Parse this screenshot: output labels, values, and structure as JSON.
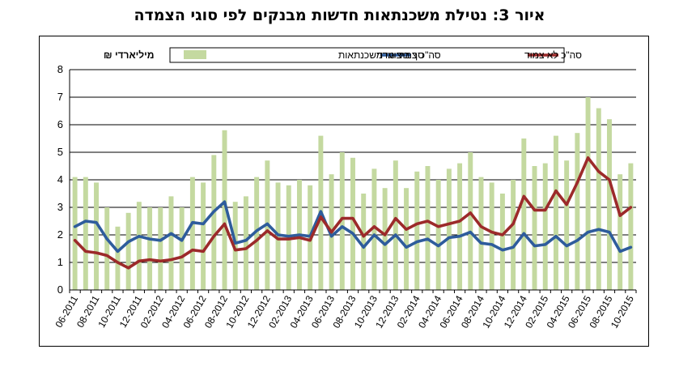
{
  "title": "איור 3: נטילת משכנתאות חדשות מבנקים לפי סוגי הצמדה",
  "chart_data": {
    "type": "bar",
    "unit_label": "מיליארדי ₪",
    "ylim": [
      0,
      8
    ],
    "yticks": [
      0,
      1,
      2,
      3,
      4,
      5,
      6,
      7,
      8
    ],
    "grid": true,
    "legend_placement": "top",
    "x": [
      "06-2011",
      "07-2011",
      "08-2011",
      "09-2011",
      "10-2011",
      "11-2011",
      "12-2011",
      "01-2012",
      "02-2012",
      "03-2012",
      "04-2012",
      "05-2012",
      "06-2012",
      "07-2012",
      "08-2012",
      "09-2012",
      "10-2012",
      "11-2012",
      "12-2012",
      "01-2013",
      "02-2013",
      "03-2013",
      "04-2013",
      "05-2013",
      "06-2013",
      "07-2013",
      "08-2013",
      "09-2013",
      "10-2013",
      "11-2013",
      "12-2013",
      "01-2014",
      "02-2014",
      "03-2014",
      "04-2014",
      "05-2014",
      "06-2014",
      "07-2014",
      "08-2014",
      "09-2014",
      "10-2014",
      "11-2014",
      "12-2014",
      "01-2015",
      "02-2015",
      "03-2015",
      "04-2015",
      "05-2015",
      "06-2015",
      "07-2015",
      "08-2015",
      "09-2015",
      "10-2015"
    ],
    "xtick_labels": [
      "06-2011",
      "08-2011",
      "10-2011",
      "12-2011",
      "02-2012",
      "04-2012",
      "06-2012",
      "08-2012",
      "10-2012",
      "12-2012",
      "02-2013",
      "04-2013",
      "06-2013",
      "08-2013",
      "10-2013",
      "12-2013",
      "02-2014",
      "04-2014",
      "06-2014",
      "08-2014",
      "10-2014",
      "12-2014",
      "02-2015",
      "04-2015",
      "06-2015",
      "08-2015",
      "10-2015"
    ],
    "series": [
      {
        "name": "סך ביצועי  משכנתאות",
        "kind": "bar",
        "color": "#c4d9a0",
        "values": [
          4.1,
          4.1,
          3.9,
          3.0,
          2.3,
          2.8,
          3.2,
          3.0,
          3.0,
          3.4,
          3.0,
          4.1,
          3.9,
          4.9,
          5.8,
          3.2,
          3.4,
          4.1,
          4.7,
          3.9,
          3.8,
          4.0,
          3.8,
          5.6,
          4.2,
          5.0,
          4.8,
          3.5,
          4.4,
          3.7,
          4.7,
          3.7,
          4.3,
          4.5,
          4.0,
          4.4,
          4.6,
          5.0,
          4.1,
          3.9,
          3.5,
          4.0,
          5.5,
          4.5,
          4.6,
          5.6,
          4.7,
          5.7,
          7.0,
          6.6,
          6.2,
          4.2,
          4.6
        ]
      },
      {
        "name": "סה\"כ צמוד מדד",
        "kind": "line",
        "color": "#2e5c9c",
        "values": [
          2.3,
          2.5,
          2.45,
          1.85,
          1.4,
          1.75,
          1.95,
          1.85,
          1.8,
          2.05,
          1.8,
          2.45,
          2.4,
          2.85,
          3.2,
          1.7,
          1.8,
          2.15,
          2.4,
          2.0,
          1.95,
          2.0,
          1.95,
          2.85,
          1.95,
          2.3,
          2.05,
          1.55,
          2.0,
          1.65,
          2.0,
          1.55,
          1.75,
          1.85,
          1.6,
          1.9,
          1.95,
          2.1,
          1.7,
          1.65,
          1.45,
          1.55,
          2.05,
          1.6,
          1.65,
          1.95,
          1.6,
          1.8,
          2.1,
          2.2,
          2.1,
          1.4,
          1.55
        ]
      },
      {
        "name": "סה\"כ לא צמוד",
        "kind": "line",
        "color": "#9c2a2a",
        "values": [
          1.8,
          1.4,
          1.35,
          1.25,
          1.0,
          0.8,
          1.05,
          1.1,
          1.05,
          1.1,
          1.2,
          1.45,
          1.4,
          1.95,
          2.4,
          1.45,
          1.5,
          1.8,
          2.15,
          1.85,
          1.85,
          1.9,
          1.8,
          2.65,
          2.1,
          2.6,
          2.6,
          1.95,
          2.3,
          2.0,
          2.6,
          2.2,
          2.4,
          2.5,
          2.3,
          2.4,
          2.5,
          2.8,
          2.3,
          2.1,
          2.0,
          2.4,
          3.4,
          2.9,
          2.9,
          3.6,
          3.1,
          3.9,
          4.8,
          4.3,
          4.0,
          2.7,
          3.0
        ]
      }
    ]
  }
}
